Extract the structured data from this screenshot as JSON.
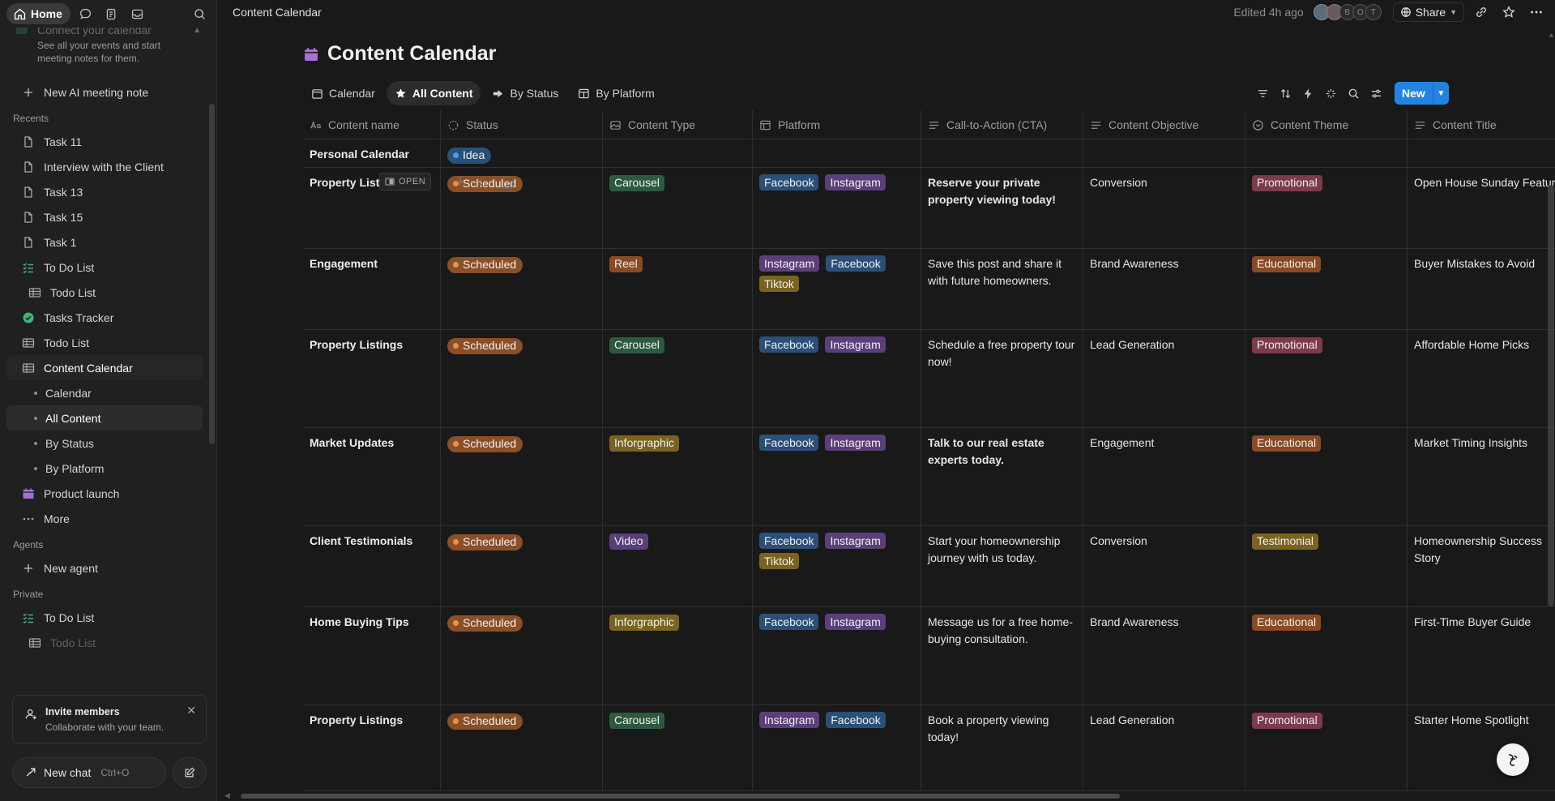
{
  "sidebar": {
    "home_label": "Home",
    "calendar_promo": {
      "title": "Connect your calendar",
      "desc": "See all your events and start meeting notes for them."
    },
    "new_ai_note": "New AI meeting note",
    "recents_label": "Recents",
    "recents": [
      {
        "label": "Task 11",
        "icon": "page-icon"
      },
      {
        "label": "Interview with the Client",
        "icon": "page-icon"
      },
      {
        "label": "Task 13",
        "icon": "page-icon"
      },
      {
        "label": "Task 15",
        "icon": "page-icon"
      },
      {
        "label": "Task 1",
        "icon": "page-icon"
      },
      {
        "label": "To Do List",
        "icon": "checklist-icon"
      },
      {
        "label": "Todo List",
        "icon": "table-icon"
      },
      {
        "label": "Tasks Tracker",
        "icon": "check-circle-icon"
      },
      {
        "label": "Todo List",
        "icon": "table-icon"
      },
      {
        "label": "Content Calendar",
        "icon": "table-icon"
      },
      {
        "label": "Calendar",
        "icon": "dot"
      },
      {
        "label": "All Content",
        "icon": "dot"
      },
      {
        "label": "By Status",
        "icon": "dot"
      },
      {
        "label": "By Platform",
        "icon": "dot"
      },
      {
        "label": "Product launch",
        "icon": "calendar-icon"
      },
      {
        "label": "More",
        "icon": "more-icon"
      }
    ],
    "agents_label": "Agents",
    "new_agent": "New agent",
    "private_label": "Private",
    "private_items": [
      {
        "label": "To Do List",
        "icon": "checklist-icon"
      },
      {
        "label": "Todo List",
        "icon": "table-icon"
      }
    ],
    "invite": {
      "title": "Invite members",
      "desc": "Collaborate with your team."
    },
    "new_chat": {
      "label": "New chat",
      "shortcut": "Ctrl+O"
    }
  },
  "topbar": {
    "breadcrumb": "Content Calendar",
    "edited": "Edited 4h ago",
    "avatar_letters": [
      "B",
      "O",
      "T"
    ],
    "share_label": "Share"
  },
  "page": {
    "title": "Content Calendar",
    "views": [
      "Calendar",
      "All Content",
      "By Status",
      "By Platform"
    ],
    "active_view": "All Content",
    "new_label": "New",
    "open_label": "OPEN"
  },
  "colors": {
    "accent": "#2383e2",
    "title_icon": "#a56fd6"
  },
  "table": {
    "columns": [
      "Content name",
      "Status",
      "Content Type",
      "Platform",
      "Call-to-Action (CTA)",
      "Content Objective",
      "Content Theme",
      "Content Title"
    ],
    "rows": [
      {
        "name": "Personal Calendar",
        "status": "Idea",
        "type": "",
        "platforms": [],
        "cta": "",
        "objective": "",
        "theme": "",
        "title": ""
      },
      {
        "name": "Property Listi",
        "status": "Scheduled",
        "type": "Carousel",
        "platforms": [
          "Facebook",
          "Instagram"
        ],
        "cta": "Reserve your private property viewing today!",
        "objective": "Conversion",
        "theme": "Promotional",
        "title": "Open House Sunday Featur"
      },
      {
        "name": "Engagement",
        "status": "Scheduled",
        "type": "Reel",
        "platforms": [
          "Instagram",
          "Facebook",
          "Tiktok"
        ],
        "cta": "Save this post and share it with future homeowners.",
        "objective": "Brand Awareness",
        "theme": "Educational",
        "title": "Buyer Mistakes to Avoid"
      },
      {
        "name": "Property Listings",
        "status": "Scheduled",
        "type": "Carousel",
        "platforms": [
          "Facebook",
          "Instagram"
        ],
        "cta": "Schedule a free property tour now!",
        "objective": "Lead Generation",
        "theme": "Promotional",
        "title": "Affordable Home Picks"
      },
      {
        "name": "Market Updates",
        "status": "Scheduled",
        "type": "Inforgraphic",
        "platforms": [
          "Facebook",
          "Instagram"
        ],
        "cta": "Talk to our real estate experts today.",
        "objective": "Engagement",
        "theme": "Educational",
        "title": "Market Timing Insights"
      },
      {
        "name": "Client Testimonials",
        "status": "Scheduled",
        "type": "Video",
        "platforms": [
          "Facebook",
          "Instagram",
          "Tiktok"
        ],
        "cta": "Start your homeownership journey with us today.",
        "objective": "Conversion",
        "theme": "Testimonial",
        "title": "Homeownership Success Story"
      },
      {
        "name": "Home Buying Tips",
        "status": "Scheduled",
        "type": "Inforgraphic",
        "platforms": [
          "Facebook",
          "Instagram"
        ],
        "cta": "Message us for a free home-buying consultation.",
        "objective": "Brand Awareness",
        "theme": "Educational",
        "title": "First-Time Buyer Guide"
      },
      {
        "name": "Property Listings",
        "status": "Scheduled",
        "type": "Carousel",
        "platforms": [
          "Instagram",
          "Facebook"
        ],
        "cta": "Book a property viewing today!",
        "objective": "Lead Generation",
        "theme": "Promotional",
        "title": "Starter Home Spotlight"
      }
    ]
  },
  "tag_colors": {
    "Carousel": "#2c5a3e",
    "Reel": "#8a4a23",
    "Inforgraphic": "#7a6320",
    "Video": "#5b3f7a",
    "Facebook": "#2a4f78",
    "Instagram": "#5b3f7a",
    "Tiktok": "#7a6320",
    "Promotional": "#7d3a4c",
    "Educational": "#8a4a23",
    "Testimonial": "#7a6320"
  }
}
